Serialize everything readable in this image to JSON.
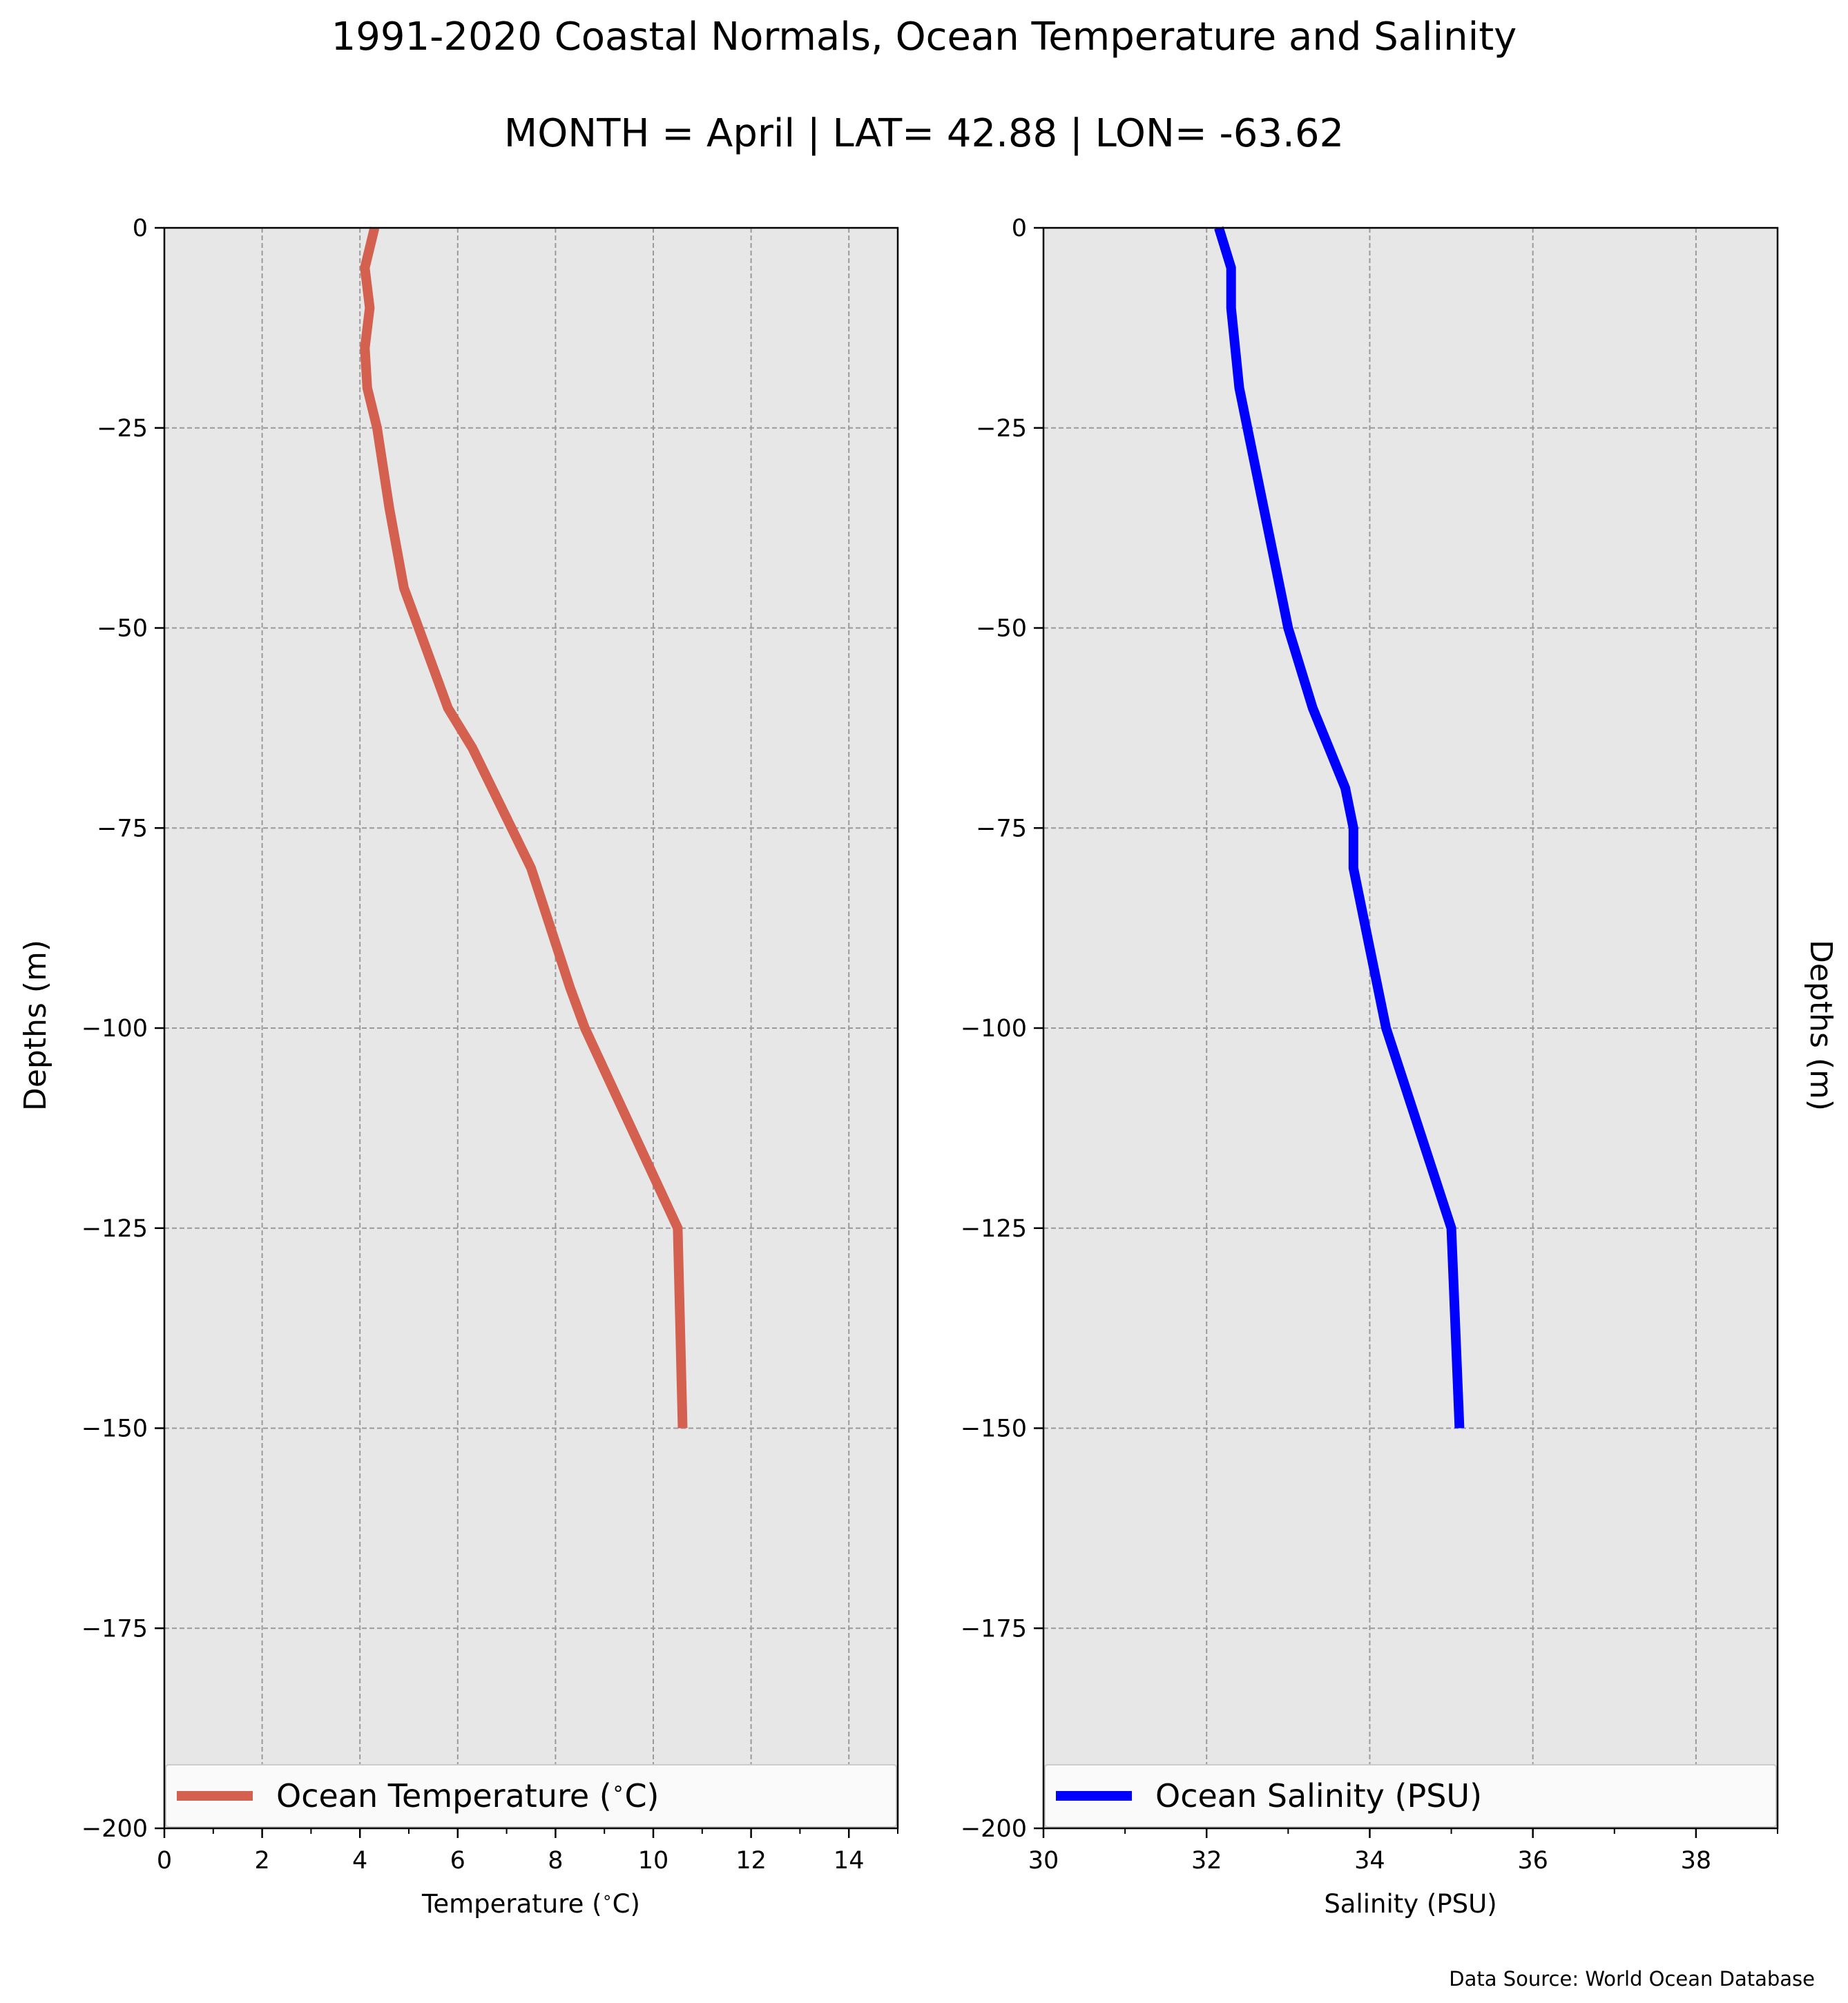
{
  "title": "1991-2020 Coastal Normals, Ocean Temperature and Salinity",
  "subtitle": "MONTH = April | LAT= 42.88 | LON= -63.62",
  "source_note": "Data Source: World Ocean Database",
  "chart_data": [
    {
      "type": "line",
      "xlabel": "Temperature ($^\\circ$C)",
      "ylabel": "Depths (m)",
      "xlim": [
        0,
        15
      ],
      "ylim": [
        -200,
        0
      ],
      "xticks": [
        "0",
        "2",
        "4",
        "6",
        "8",
        "10",
        "12",
        "14"
      ],
      "yticks": [
        "0",
        "−25",
        "−50",
        "−75",
        "−100",
        "−125",
        "−150",
        "−175",
        "−200"
      ],
      "grid": true,
      "legend": "bottom",
      "series": [
        {
          "name": "Ocean Temperature ($^\\circ$C)",
          "color": "#d4604f",
          "x": [
            4.3,
            4.1,
            4.2,
            4.1,
            4.15,
            4.35,
            4.6,
            4.9,
            5.2,
            5.8,
            6.3,
            6.7,
            7.5,
            8.3,
            8.6,
            10.5,
            10.6
          ],
          "y": [
            0,
            -5,
            -10,
            -15,
            -20,
            -25,
            -35,
            -45,
            -50,
            -60,
            -65,
            -70,
            -80,
            -95,
            -100,
            -125,
            -150
          ]
        }
      ]
    },
    {
      "type": "line",
      "xlabel": "Salinity (PSU)",
      "ylabel": "Depths (m)",
      "xlim": [
        30,
        39
      ],
      "ylim": [
        -200,
        0
      ],
      "xticks": [
        "30",
        "32",
        "34",
        "36",
        "38"
      ],
      "yticks": [
        "0",
        "−25",
        "−50",
        "−75",
        "−100",
        "−125",
        "−150",
        "−175",
        "−200"
      ],
      "grid": true,
      "legend": "bottom",
      "series": [
        {
          "name": "Ocean Salinity (PSU)",
          "color": "#0000ff",
          "x": [
            32.15,
            32.3,
            32.3,
            32.4,
            32.5,
            32.7,
            33.0,
            33.3,
            33.5,
            33.7,
            33.8,
            33.8,
            34.0,
            34.2,
            35.0,
            35.1
          ],
          "y": [
            0,
            -5,
            -10,
            -20,
            -25,
            -35,
            -50,
            -60,
            -65,
            -70,
            -75,
            -80,
            -90,
            -100,
            -125,
            -150
          ]
        }
      ]
    }
  ]
}
